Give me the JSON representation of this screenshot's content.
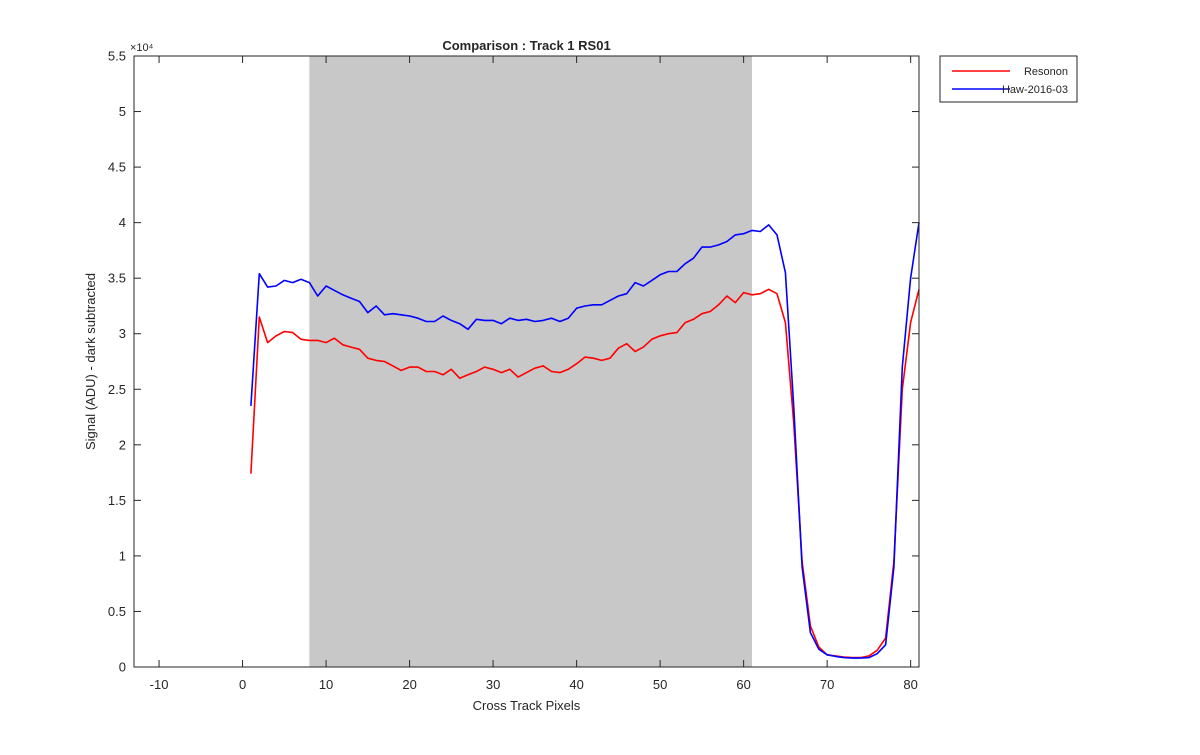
{
  "chart_data": {
    "type": "line",
    "title": "Comparison : Track 1  RS01",
    "xlabel": "Cross Track Pixels",
    "ylabel": "Signal (ADU) - dark subtracted",
    "exponent_label": "×10⁴",
    "xlim": [
      -13,
      81
    ],
    "ylim": [
      0,
      55000
    ],
    "xticks": [
      -10,
      0,
      10,
      20,
      30,
      40,
      50,
      60,
      70,
      80
    ],
    "yticks": [
      0,
      5000,
      10000,
      15000,
      20000,
      25000,
      30000,
      35000,
      40000,
      45000,
      50000,
      55000
    ],
    "ytick_labels": [
      "0",
      "0.5",
      "1",
      "1.5",
      "2",
      "2.5",
      "3",
      "3.5",
      "4",
      "4.5",
      "5",
      "5.5"
    ],
    "grid": false,
    "legend_position": "outside-top-right",
    "shaded_region": {
      "x": [
        8,
        61
      ],
      "color": "#c8c8c8"
    },
    "x": [
      1,
      2,
      3,
      4,
      5,
      6,
      7,
      8,
      9,
      10,
      11,
      12,
      13,
      14,
      15,
      16,
      17,
      18,
      19,
      20,
      21,
      22,
      23,
      24,
      25,
      26,
      27,
      28,
      29,
      30,
      31,
      32,
      33,
      34,
      35,
      36,
      37,
      38,
      39,
      40,
      41,
      42,
      43,
      44,
      45,
      46,
      47,
      48,
      49,
      50,
      51,
      52,
      53,
      54,
      55,
      56,
      57,
      58,
      59,
      60,
      61,
      62,
      63,
      64,
      65,
      66,
      67,
      68,
      69,
      70,
      71,
      72,
      73,
      74,
      75,
      76,
      77,
      78,
      79,
      80,
      81
    ],
    "series": [
      {
        "name": "Resonon",
        "color": "#ff0000",
        "values": [
          17400,
          31500,
          29200,
          29800,
          30200,
          30100,
          29500,
          29400,
          29400,
          29200,
          29600,
          29000,
          28800,
          28600,
          27800,
          27600,
          27500,
          27100,
          26700,
          27000,
          27000,
          26600,
          26600,
          26300,
          26800,
          26000,
          26300,
          26600,
          27000,
          26800,
          26500,
          26800,
          26100,
          26500,
          26900,
          27100,
          26600,
          26500,
          26800,
          27300,
          27900,
          27800,
          27600,
          27800,
          28700,
          29100,
          28400,
          28800,
          29500,
          29800,
          30000,
          30100,
          31000,
          31300,
          31800,
          32000,
          32600,
          33400,
          32800,
          33700,
          33500,
          33600,
          34000,
          33600,
          31000,
          22000,
          9500,
          3700,
          1800,
          1100,
          1000,
          900,
          850,
          850,
          1000,
          1500,
          2600,
          9500,
          25000,
          31000,
          34000
        ]
      },
      {
        "name": "Haw-2016-03",
        "color": "#0000ff",
        "values": [
          23500,
          35400,
          34200,
          34300,
          34800,
          34600,
          34900,
          34600,
          33400,
          34300,
          33900,
          33500,
          33200,
          32900,
          31900,
          32500,
          31700,
          31800,
          31700,
          31600,
          31400,
          31100,
          31100,
          31600,
          31200,
          30900,
          30400,
          31300,
          31200,
          31200,
          30900,
          31400,
          31200,
          31300,
          31100,
          31200,
          31400,
          31100,
          31400,
          32300,
          32500,
          32600,
          32600,
          33000,
          33400,
          33600,
          34600,
          34300,
          34800,
          35300,
          35600,
          35600,
          36300,
          36800,
          37800,
          37800,
          38000,
          38300,
          38900,
          39000,
          39300,
          39200,
          39800,
          38900,
          35500,
          23500,
          9000,
          3100,
          1600,
          1100,
          950,
          850,
          800,
          800,
          850,
          1200,
          2000,
          9000,
          27000,
          35000,
          40000
        ]
      }
    ]
  }
}
